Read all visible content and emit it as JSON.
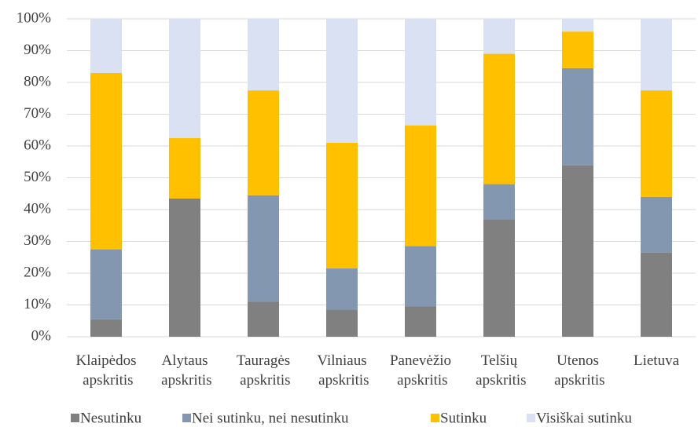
{
  "chart_data": {
    "type": "stacked_bar",
    "categories": [
      "Klaipėdos apskritis",
      "Alytaus apskritis",
      "Tauragės apskritis",
      "Vilniaus apskritis",
      "Panevėžio apskritis",
      "Telšių apskritis",
      "Utenos apskritis",
      "Lietuva"
    ],
    "series": [
      {
        "name": "Nesutinku",
        "color": "#808080",
        "values": [
          5.5,
          43.5,
          11,
          8.5,
          9.5,
          37,
          54,
          26.5
        ]
      },
      {
        "name": "Nei sutinku, nei nesutinku",
        "color": "#8497b0",
        "values": [
          22,
          0,
          33.5,
          13,
          19,
          11,
          30.5,
          17.5
        ]
      },
      {
        "name": "Sutinku",
        "color": "#ffc000",
        "values": [
          55.5,
          19,
          33,
          39.5,
          38,
          41,
          11.5,
          33.5
        ]
      },
      {
        "name": "Visiškai sutinku",
        "color": "#d9e1f2",
        "values": [
          17,
          37.5,
          22.5,
          39,
          33.5,
          11,
          4,
          22.5
        ]
      }
    ],
    "ylim": [
      0,
      100
    ],
    "yticks": [
      {
        "value": 0,
        "label": "0%"
      },
      {
        "value": 10,
        "label": "10%"
      },
      {
        "value": 20,
        "label": "20%"
      },
      {
        "value": 30,
        "label": "30%"
      },
      {
        "value": 40,
        "label": "40%"
      },
      {
        "value": 50,
        "label": "50%"
      },
      {
        "value": 60,
        "label": "60%"
      },
      {
        "value": 70,
        "label": "70%"
      },
      {
        "value": 80,
        "label": "80%"
      },
      {
        "value": 90,
        "label": "90%"
      },
      {
        "value": 100,
        "label": "100%"
      }
    ],
    "grid": true,
    "legend": "bottom"
  }
}
